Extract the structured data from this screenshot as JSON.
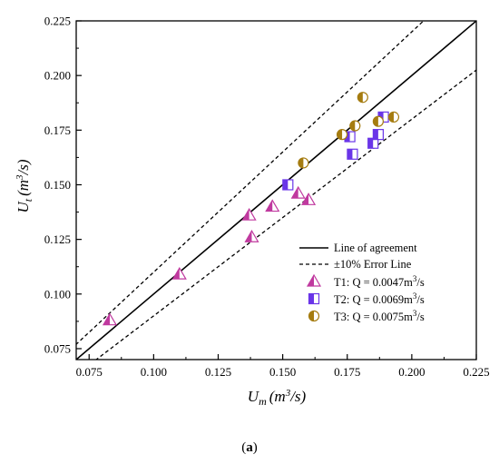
{
  "chart_data": {
    "type": "scatter",
    "xlabel": {
      "main": "U",
      "sub": "m",
      "unit": "(m",
      "sup": "3",
      "tail": "/s)"
    },
    "ylabel": {
      "main": "U",
      "sub": "t",
      "unit": "(m",
      "sup": "3",
      "tail": "/s)"
    },
    "xlim": [
      0.07,
      0.225
    ],
    "ylim": [
      0.07,
      0.225
    ],
    "xticks": [
      "0.075",
      "0.100",
      "0.125",
      "0.150",
      "0.175",
      "0.200",
      "0.225"
    ],
    "yticks": [
      "0.075",
      "0.100",
      "0.125",
      "0.150",
      "0.175",
      "0.200",
      "0.225"
    ],
    "lines": [
      {
        "label": "Line of agreement",
        "slope": 1.0,
        "style": "solid"
      },
      {
        "label": "±10% Error Line",
        "slope_upper": 1.1,
        "slope_lower": 0.9,
        "style": "dashed"
      }
    ],
    "series": [
      {
        "name": "T1: Q = 0.0047m3/s",
        "label_main": "T1: Q = 0.0047m",
        "label_sup": "3",
        "label_tail": "/s",
        "marker": "triangle",
        "color": "#c0399f",
        "points": [
          [
            0.083,
            0.088
          ],
          [
            0.11,
            0.109
          ],
          [
            0.137,
            0.136
          ],
          [
            0.138,
            0.126
          ],
          [
            0.146,
            0.14
          ],
          [
            0.156,
            0.146
          ],
          [
            0.16,
            0.143
          ]
        ]
      },
      {
        "name": "T2: Q = 0.0069m3/s",
        "label_main": "T2: Q = 0.0069m",
        "label_sup": "3",
        "label_tail": "/s",
        "marker": "square",
        "color": "#6a35e8",
        "points": [
          [
            0.152,
            0.15
          ],
          [
            0.176,
            0.172
          ],
          [
            0.177,
            0.164
          ],
          [
            0.185,
            0.169
          ],
          [
            0.187,
            0.173
          ],
          [
            0.189,
            0.181
          ]
        ]
      },
      {
        "name": "T3: Q = 0.0075m3/s",
        "label_main": "T3: Q = 0.0075m",
        "label_sup": "3",
        "label_tail": "/s",
        "marker": "circle",
        "color": "#a57c10",
        "points": [
          [
            0.158,
            0.16
          ],
          [
            0.173,
            0.173
          ],
          [
            0.178,
            0.177
          ],
          [
            0.181,
            0.19
          ],
          [
            0.187,
            0.179
          ],
          [
            0.193,
            0.181
          ]
        ]
      }
    ],
    "legend_position": "bottom-right",
    "caption": {
      "open": "(",
      "bold": "a",
      "close": ")"
    }
  }
}
